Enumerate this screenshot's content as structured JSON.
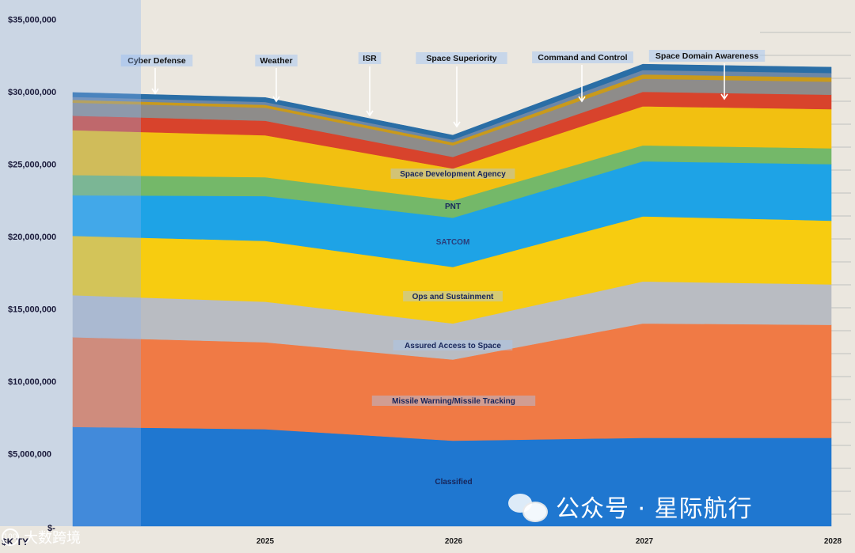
{
  "chart_data": {
    "type": "area",
    "stacked": true,
    "x": [
      "2024",
      "2025",
      "2026",
      "2027",
      "2028"
    ],
    "x_tick_labels": [
      "2025",
      "2026",
      "2027",
      "2028"
    ],
    "ylim": [
      0,
      35000000
    ],
    "y_ticks": [
      5000000,
      10000000,
      15000000,
      20000000,
      25000000,
      30000000,
      35000000
    ],
    "y_tick_labels": [
      "$5,000,000",
      "$10,000,000",
      "$15,000,000",
      "$20,000,000",
      "$25,000,000",
      "$30,000,000",
      "$35,000,000"
    ],
    "y_unit_label": "$K TY",
    "origin_label": "$-",
    "series": [
      {
        "name": "Classified",
        "color": "#1f77d0",
        "label_color": "#17255a",
        "values": [
          6850000,
          6700000,
          5900000,
          6100000,
          6100000
        ]
      },
      {
        "name": "Missile Warning/Missile Tracking",
        "color": "#f07a45",
        "label_color": "#17255a",
        "values": [
          6200000,
          6000000,
          5600000,
          7900000,
          7800000
        ]
      },
      {
        "name": "Assured Access to Space",
        "color": "#b9bcc2",
        "label_color": "#17255a",
        "values": [
          2900000,
          2800000,
          2500000,
          2900000,
          2800000
        ]
      },
      {
        "name": "Ops and Sustainment",
        "color": "#f7cc10",
        "label_color": "#17255a",
        "values": [
          4100000,
          4200000,
          3900000,
          4500000,
          4400000
        ]
      },
      {
        "name": "SATCOM",
        "color": "#1ea3e6",
        "label_color": "#2a3d7a",
        "values": [
          2800000,
          3100000,
          3400000,
          3800000,
          3900000
        ]
      },
      {
        "name": "PNT",
        "color": "#74b869",
        "label_color": "#17255a",
        "values": [
          1400000,
          1300000,
          1200000,
          1100000,
          1100000
        ]
      },
      {
        "name": "Space Development Agency",
        "color": "#f2c011",
        "label_color": "#17255a",
        "values": [
          3100000,
          2900000,
          2200000,
          2700000,
          2700000
        ]
      },
      {
        "name": "Space Superiority",
        "color": "#d8432c",
        "label_color": "#17255a",
        "values": [
          1000000,
          1000000,
          800000,
          1000000,
          1000000
        ]
      },
      {
        "name": "Command and Control",
        "color": "#8e8c8a",
        "label_color": "#17255a",
        "values": [
          900000,
          900000,
          800000,
          900000,
          900000
        ]
      },
      {
        "name": "Cyber Defense",
        "color": "#c99a1c",
        "label_color": "#17255a",
        "values": [
          200000,
          200000,
          200000,
          300000,
          300000
        ]
      },
      {
        "name": "Weather",
        "color": "#6b87a8",
        "label_color": "#17255a",
        "values": [
          200000,
          200000,
          200000,
          300000,
          300000
        ]
      },
      {
        "name": "ISR",
        "color": "#2a6ea6",
        "label_color": "#17255a",
        "values": [
          300000,
          300000,
          300000,
          400000,
          400000
        ]
      }
    ],
    "annotations": [
      {
        "text": "Cyber Defense"
      },
      {
        "text": "Weather"
      },
      {
        "text": "ISR"
      },
      {
        "text": "Space Superiority"
      },
      {
        "text": "Command and Control"
      },
      {
        "text": "Space Domain Awareness"
      }
    ],
    "inline_labels": [
      "Classified",
      "Missile Warning/Missile Tracking",
      "Assured Access to Space",
      "Ops and Sustainment",
      "SATCOM",
      "PNT",
      "Space Development Agency"
    ]
  },
  "watermark": {
    "main": "公众号 · 星际航行",
    "secondary": "大数跨境"
  }
}
